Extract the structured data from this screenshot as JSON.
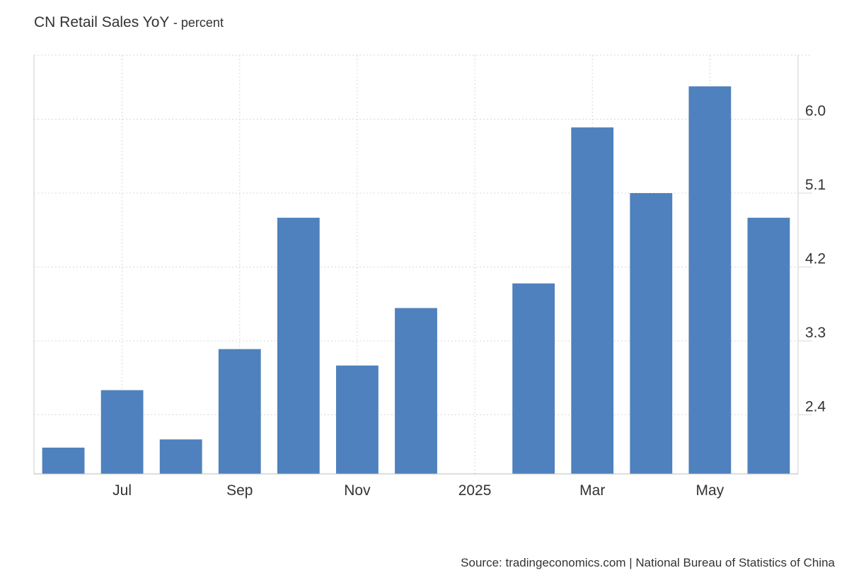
{
  "header": {
    "title": "CN Retail Sales YoY",
    "subtitle": "- percent"
  },
  "footer": {
    "source": "Source: tradingeconomics.com | National Bureau of Statistics of China"
  },
  "chart_data": {
    "type": "bar",
    "title": "CN Retail Sales YoY",
    "subtitle": "- percent",
    "xlabel": "",
    "ylabel": "",
    "categories": [
      "2024-06",
      "2024-07",
      "2024-08",
      "2024-09",
      "2024-10",
      "2024-11",
      "2024-12",
      "2025-01",
      "2025-02",
      "2025-03",
      "2025-04",
      "2025-05",
      "2025-06"
    ],
    "values": [
      2.0,
      2.7,
      2.1,
      3.2,
      4.8,
      3.0,
      3.7,
      null,
      4.0,
      5.9,
      5.1,
      6.4,
      4.8
    ],
    "x_tick_labels": [
      {
        "category": "2024-07",
        "label": "Jul"
      },
      {
        "category": "2024-09",
        "label": "Sep"
      },
      {
        "category": "2024-11",
        "label": "Nov"
      },
      {
        "category": "2025-01",
        "label": "2025"
      },
      {
        "category": "2025-03",
        "label": "Mar"
      },
      {
        "category": "2025-05",
        "label": "May"
      }
    ],
    "y_ticks": [
      2.4,
      3.3,
      4.2,
      5.1,
      6.0
    ],
    "y_tick_labels": [
      "2.4",
      "3.3",
      "4.2",
      "5.1",
      "6.0"
    ],
    "ylim": [
      1.68,
      6.78
    ],
    "y_axis_position": "right",
    "grid": true,
    "legend": "none",
    "bar_color": "#4e81bd"
  }
}
